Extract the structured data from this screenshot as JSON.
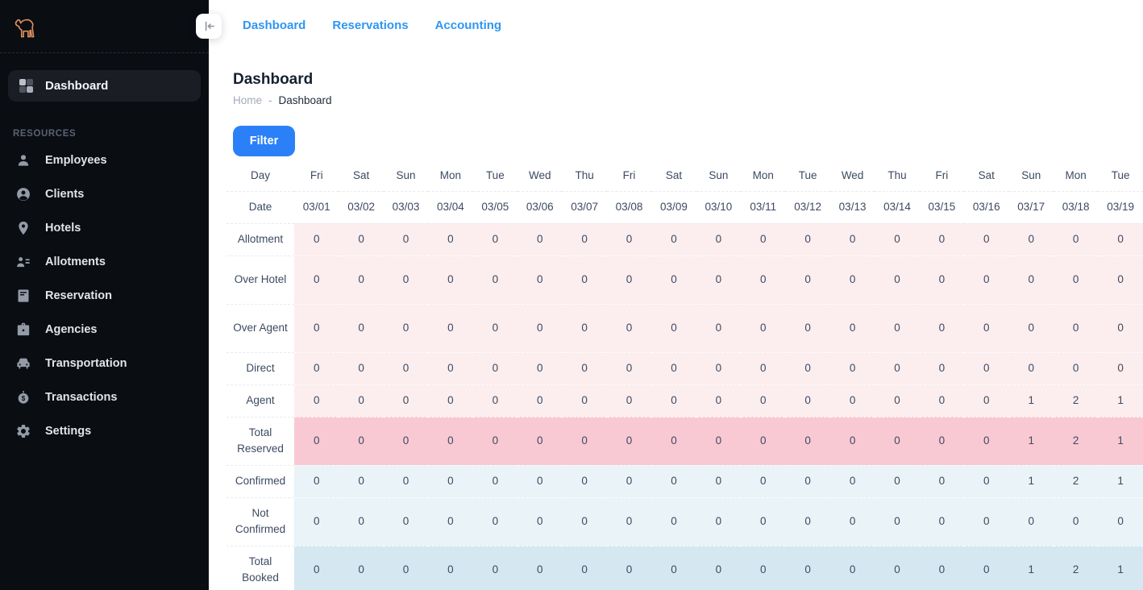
{
  "colors": {
    "accent_link": "#2e96f3",
    "accent_button": "#2b80f7",
    "sidebar_bg": "#0a0d12",
    "logo_orange": "#e0935f"
  },
  "topnav": {
    "links": [
      "Dashboard",
      "Reservations",
      "Accounting"
    ]
  },
  "sidebar": {
    "dashboard_label": "Dashboard",
    "section_label": "RESOURCES",
    "items": [
      {
        "label": "Employees",
        "icon": "user-icon"
      },
      {
        "label": "Clients",
        "icon": "user-circle-icon"
      },
      {
        "label": "Hotels",
        "icon": "map-pin-icon"
      },
      {
        "label": "Allotments",
        "icon": "user-list-icon"
      },
      {
        "label": "Reservation",
        "icon": "book-icon"
      },
      {
        "label": "Agencies",
        "icon": "briefcase-icon"
      },
      {
        "label": "Transportation",
        "icon": "car-icon"
      },
      {
        "label": "Transactions",
        "icon": "money-icon"
      },
      {
        "label": "Settings",
        "icon": "gear-icon"
      }
    ]
  },
  "page": {
    "title": "Dashboard",
    "breadcrumb": {
      "home": "Home",
      "separator": "-",
      "current": "Dashboard"
    },
    "filter_button": "Filter"
  },
  "table": {
    "day_label": "Day",
    "date_label": "Date",
    "days": [
      "Fri",
      "Sat",
      "Sun",
      "Mon",
      "Tue",
      "Wed",
      "Thu",
      "Fri",
      "Sat",
      "Sun",
      "Mon",
      "Tue",
      "Wed",
      "Thu",
      "Fri",
      "Sat",
      "Sun",
      "Mon",
      "Tue"
    ],
    "dates": [
      "03/01",
      "03/02",
      "03/03",
      "03/04",
      "03/05",
      "03/06",
      "03/07",
      "03/08",
      "03/09",
      "03/10",
      "03/11",
      "03/12",
      "03/13",
      "03/14",
      "03/15",
      "03/16",
      "03/17",
      "03/18",
      "03/19"
    ],
    "rows": [
      {
        "label": "Allotment",
        "tone": "pink",
        "tall": false,
        "values": [
          0,
          0,
          0,
          0,
          0,
          0,
          0,
          0,
          0,
          0,
          0,
          0,
          0,
          0,
          0,
          0,
          0,
          0,
          0
        ]
      },
      {
        "label": "Over Hotel",
        "tone": "pink",
        "tall": true,
        "values": [
          0,
          0,
          0,
          0,
          0,
          0,
          0,
          0,
          0,
          0,
          0,
          0,
          0,
          0,
          0,
          0,
          0,
          0,
          0
        ]
      },
      {
        "label": "Over Agent",
        "tone": "pink",
        "tall": true,
        "values": [
          0,
          0,
          0,
          0,
          0,
          0,
          0,
          0,
          0,
          0,
          0,
          0,
          0,
          0,
          0,
          0,
          0,
          0,
          0
        ]
      },
      {
        "label": "Direct",
        "tone": "pink",
        "tall": false,
        "values": [
          0,
          0,
          0,
          0,
          0,
          0,
          0,
          0,
          0,
          0,
          0,
          0,
          0,
          0,
          0,
          0,
          0,
          0,
          0
        ]
      },
      {
        "label": "Agent",
        "tone": "pink",
        "tall": false,
        "values": [
          0,
          0,
          0,
          0,
          0,
          0,
          0,
          0,
          0,
          0,
          0,
          0,
          0,
          0,
          0,
          0,
          1,
          2,
          1
        ]
      },
      {
        "label": "Total Reserved",
        "tone": "pink-strong",
        "tall": true,
        "values": [
          0,
          0,
          0,
          0,
          0,
          0,
          0,
          0,
          0,
          0,
          0,
          0,
          0,
          0,
          0,
          0,
          1,
          2,
          1
        ]
      },
      {
        "label": "Confirmed",
        "tone": "blue",
        "tall": false,
        "values": [
          0,
          0,
          0,
          0,
          0,
          0,
          0,
          0,
          0,
          0,
          0,
          0,
          0,
          0,
          0,
          0,
          1,
          2,
          1
        ]
      },
      {
        "label": "Not Confirmed",
        "tone": "blue",
        "tall": true,
        "values": [
          0,
          0,
          0,
          0,
          0,
          0,
          0,
          0,
          0,
          0,
          0,
          0,
          0,
          0,
          0,
          0,
          0,
          0,
          0
        ]
      },
      {
        "label": "Total Booked",
        "tone": "blue-strong",
        "tall": true,
        "values": [
          0,
          0,
          0,
          0,
          0,
          0,
          0,
          0,
          0,
          0,
          0,
          0,
          0,
          0,
          0,
          0,
          1,
          2,
          1
        ]
      }
    ],
    "tone_colors": {
      "pink": "#fcedef",
      "pink-strong": "#f9c9d3",
      "blue": "#e9f3f8",
      "blue-strong": "#d5e8f1"
    }
  }
}
